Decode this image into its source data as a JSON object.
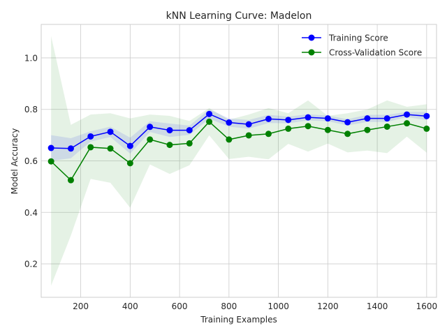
{
  "chart_data": {
    "type": "line",
    "title": "kNN Learning Curve: Madelon",
    "xlabel": "Training Examples",
    "ylabel": "Model Accuracy",
    "xlim": [
      40,
      1640
    ],
    "ylim": [
      0.07,
      1.13
    ],
    "xticks": [
      200,
      400,
      600,
      800,
      1000,
      1200,
      1400,
      1600
    ],
    "xtick_labels": [
      "200",
      "400",
      "600",
      "800",
      "1000",
      "1200",
      "1400",
      "1600"
    ],
    "yticks": [
      0.2,
      0.4,
      0.6,
      0.8,
      1.0
    ],
    "ytick_labels": [
      "0.2",
      "0.4",
      "0.6",
      "0.8",
      "1.0"
    ],
    "grid": true,
    "legend_position": "top-right",
    "x": [
      80,
      160,
      240,
      320,
      400,
      480,
      560,
      640,
      720,
      800,
      880,
      960,
      1040,
      1120,
      1200,
      1280,
      1360,
      1440,
      1520,
      1600
    ],
    "series": [
      {
        "name": "Training Score",
        "color": "#0000ff",
        "band_color": "#0000ff",
        "values": [
          0.65,
          0.648,
          0.695,
          0.713,
          0.658,
          0.732,
          0.719,
          0.719,
          0.782,
          0.749,
          0.742,
          0.763,
          0.759,
          0.769,
          0.765,
          0.75,
          0.765,
          0.765,
          0.78,
          0.774
        ],
        "band_upper": [
          0.7,
          0.688,
          0.715,
          0.733,
          0.69,
          0.754,
          0.745,
          0.737,
          0.8,
          0.765,
          0.759,
          0.779,
          0.772,
          0.781,
          0.776,
          0.762,
          0.779,
          0.779,
          0.79,
          0.79
        ],
        "band_lower": [
          0.6,
          0.61,
          0.675,
          0.693,
          0.628,
          0.712,
          0.693,
          0.701,
          0.764,
          0.733,
          0.725,
          0.747,
          0.746,
          0.757,
          0.754,
          0.738,
          0.751,
          0.751,
          0.77,
          0.758
        ]
      },
      {
        "name": "Cross-Validation Score",
        "color": "#008000",
        "band_color": "#008000",
        "values": [
          0.598,
          0.525,
          0.653,
          0.648,
          0.591,
          0.683,
          0.662,
          0.668,
          0.752,
          0.683,
          0.699,
          0.705,
          0.725,
          0.735,
          0.72,
          0.705,
          0.72,
          0.733,
          0.746,
          0.725
        ],
        "band_upper": [
          1.085,
          0.74,
          0.78,
          0.785,
          0.765,
          0.78,
          0.775,
          0.755,
          0.805,
          0.76,
          0.78,
          0.805,
          0.785,
          0.835,
          0.775,
          0.785,
          0.8,
          0.835,
          0.81,
          0.82
        ],
        "band_lower": [
          0.115,
          0.31,
          0.53,
          0.515,
          0.418,
          0.586,
          0.549,
          0.583,
          0.699,
          0.607,
          0.616,
          0.606,
          0.666,
          0.636,
          0.667,
          0.633,
          0.64,
          0.63,
          0.694,
          0.632
        ]
      }
    ]
  }
}
